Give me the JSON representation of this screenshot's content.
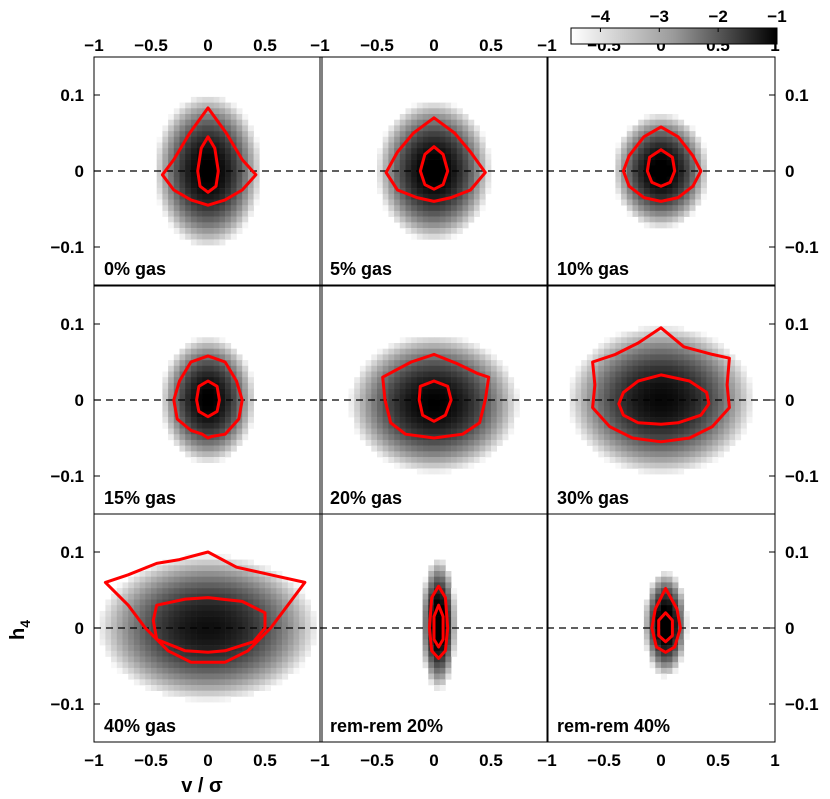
{
  "chart_data": {
    "type": "heatmap",
    "grid": {
      "rows": 3,
      "cols": 3
    },
    "xlim": [
      -1,
      1
    ],
    "ylim": [
      -0.15,
      0.15
    ],
    "xlabel": "v / σ",
    "ylabel": "h4",
    "x_ticks": [
      "-1",
      "-0.5",
      "0",
      "0.5"
    ],
    "x_ticks_last": "1",
    "y_ticks": [
      "0.1",
      "0",
      "-0.1"
    ],
    "y_tick_values": [
      0.1,
      0,
      -0.1
    ],
    "x_tick_values": [
      -1,
      -0.5,
      0,
      0.5,
      1
    ],
    "colorbar": {
      "ticks": [
        "-4",
        "-3",
        "-2",
        "-1"
      ],
      "range": [
        -4.5,
        -1
      ],
      "tick_values": [
        -4,
        -3,
        -2,
        -1
      ]
    },
    "panels": [
      {
        "label": "0% gas",
        "cx": 0.0,
        "cy": 0.0,
        "sx": 0.28,
        "sy": 0.06,
        "dark": -0.92,
        "outer": [
          [
            0,
            0.083
          ],
          [
            0.16,
            0.05
          ],
          [
            0.3,
            0.015
          ],
          [
            0.42,
            -0.005
          ],
          [
            0.3,
            -0.025
          ],
          [
            0.15,
            -0.038
          ],
          [
            0,
            -0.045
          ],
          [
            -0.15,
            -0.038
          ],
          [
            -0.3,
            -0.025
          ],
          [
            -0.4,
            -0.005
          ],
          [
            -0.3,
            0.015
          ],
          [
            -0.16,
            0.05
          ]
        ],
        "inner": [
          [
            0,
            0.045
          ],
          [
            0.06,
            0.03
          ],
          [
            0.09,
            0
          ],
          [
            0.07,
            -0.02
          ],
          [
            0,
            -0.028
          ],
          [
            -0.07,
            -0.02
          ],
          [
            -0.09,
            0
          ],
          [
            -0.06,
            0.03
          ]
        ]
      },
      {
        "label": "5% gas",
        "cx": 0.0,
        "cy": 0.0,
        "sx": 0.3,
        "sy": 0.055,
        "dark": -0.9,
        "outer": [
          [
            0,
            0.07
          ],
          [
            0.18,
            0.05
          ],
          [
            0.32,
            0.025
          ],
          [
            0.45,
            -0.002
          ],
          [
            0.32,
            -0.025
          ],
          [
            0.15,
            -0.035
          ],
          [
            0,
            -0.04
          ],
          [
            -0.15,
            -0.035
          ],
          [
            -0.32,
            -0.025
          ],
          [
            -0.42,
            -0.002
          ],
          [
            -0.32,
            0.025
          ],
          [
            -0.18,
            0.05
          ]
        ],
        "inner": [
          [
            0,
            0.032
          ],
          [
            0.08,
            0.022
          ],
          [
            0.12,
            0
          ],
          [
            0.08,
            -0.018
          ],
          [
            0,
            -0.024
          ],
          [
            -0.08,
            -0.018
          ],
          [
            -0.12,
            0
          ],
          [
            -0.08,
            0.022
          ]
        ]
      },
      {
        "label": "10% gas",
        "cx": 0.0,
        "cy": 0.0,
        "sx": 0.25,
        "sy": 0.045,
        "dark": -0.88,
        "outer": [
          [
            0,
            0.058
          ],
          [
            0.15,
            0.045
          ],
          [
            0.28,
            0.02
          ],
          [
            0.35,
            0
          ],
          [
            0.28,
            -0.02
          ],
          [
            0.15,
            -0.035
          ],
          [
            0,
            -0.04
          ],
          [
            -0.15,
            -0.035
          ],
          [
            -0.28,
            -0.02
          ],
          [
            -0.33,
            0
          ],
          [
            -0.28,
            0.02
          ],
          [
            -0.15,
            0.045
          ]
        ],
        "inner": [
          [
            0,
            0.028
          ],
          [
            0.1,
            0.018
          ],
          [
            0.12,
            0
          ],
          [
            0.08,
            -0.015
          ],
          [
            0,
            -0.02
          ],
          [
            -0.08,
            -0.015
          ],
          [
            -0.12,
            0
          ],
          [
            -0.1,
            0.018
          ]
        ]
      },
      {
        "label": "15% gas",
        "cx": 0.0,
        "cy": 0.0,
        "sx": 0.25,
        "sy": 0.05,
        "dark": -0.95,
        "outer": [
          [
            0,
            0.058
          ],
          [
            0.15,
            0.05
          ],
          [
            0.25,
            0.025
          ],
          [
            0.3,
            0
          ],
          [
            0.27,
            -0.025
          ],
          [
            0.15,
            -0.045
          ],
          [
            0.03,
            -0.048
          ],
          [
            0,
            -0.05
          ],
          [
            -0.05,
            -0.045
          ],
          [
            -0.15,
            -0.04
          ],
          [
            -0.27,
            -0.025
          ],
          [
            -0.3,
            0
          ],
          [
            -0.25,
            0.025
          ],
          [
            -0.15,
            0.05
          ]
        ],
        "inner": [
          [
            0,
            0.025
          ],
          [
            0.08,
            0.018
          ],
          [
            0.1,
            0
          ],
          [
            0.08,
            -0.015
          ],
          [
            0,
            -0.022
          ],
          [
            -0.08,
            -0.015
          ],
          [
            -0.1,
            0
          ],
          [
            -0.08,
            0.018
          ]
        ]
      },
      {
        "label": "20% gas",
        "cx": 0.0,
        "cy": -0.005,
        "sx": 0.45,
        "sy": 0.055,
        "dark": -1.0,
        "outer": [
          [
            0,
            0.06
          ],
          [
            0.2,
            0.048
          ],
          [
            0.38,
            0.035
          ],
          [
            0.48,
            0.03
          ],
          [
            0.45,
            0
          ],
          [
            0.4,
            -0.03
          ],
          [
            0.25,
            -0.045
          ],
          [
            0,
            -0.05
          ],
          [
            -0.25,
            -0.045
          ],
          [
            -0.38,
            -0.03
          ],
          [
            -0.43,
            0
          ],
          [
            -0.45,
            0.03
          ],
          [
            -0.35,
            0.038
          ],
          [
            -0.2,
            0.05
          ]
        ],
        "inner": [
          [
            0,
            0.025
          ],
          [
            0.12,
            0.018
          ],
          [
            0.15,
            0
          ],
          [
            0.1,
            -0.02
          ],
          [
            0,
            -0.028
          ],
          [
            -0.1,
            -0.02
          ],
          [
            -0.13,
            0
          ],
          [
            -0.12,
            0.018
          ]
        ]
      },
      {
        "label": "30% gas",
        "cx": 0.0,
        "cy": 0.0,
        "sx": 0.5,
        "sy": 0.06,
        "dark": -1.1,
        "outer": [
          [
            0,
            0.095
          ],
          [
            0.2,
            0.07
          ],
          [
            0.45,
            0.06
          ],
          [
            0.6,
            0.055
          ],
          [
            0.58,
            0.02
          ],
          [
            0.6,
            -0.01
          ],
          [
            0.45,
            -0.035
          ],
          [
            0.25,
            -0.05
          ],
          [
            0,
            -0.055
          ],
          [
            -0.25,
            -0.05
          ],
          [
            -0.45,
            -0.035
          ],
          [
            -0.6,
            -0.01
          ],
          [
            -0.58,
            0.02
          ],
          [
            -0.6,
            0.05
          ],
          [
            -0.4,
            0.06
          ],
          [
            -0.2,
            0.075
          ]
        ],
        "inner": [
          [
            0,
            0.033
          ],
          [
            0.25,
            0.025
          ],
          [
            0.4,
            0.01
          ],
          [
            0.42,
            -0.005
          ],
          [
            0.35,
            -0.02
          ],
          [
            0.15,
            -0.03
          ],
          [
            0,
            -0.032
          ],
          [
            -0.2,
            -0.03
          ],
          [
            -0.33,
            -0.02
          ],
          [
            -0.37,
            -0.005
          ],
          [
            -0.33,
            0.01
          ],
          [
            -0.2,
            0.025
          ]
        ]
      },
      {
        "label": "40% gas",
        "cx": 0.0,
        "cy": 0.0,
        "sx": 0.6,
        "sy": 0.06,
        "dark": -1.2,
        "outer": [
          [
            0,
            0.1
          ],
          [
            0.25,
            0.08
          ],
          [
            0.55,
            0.07
          ],
          [
            0.85,
            0.06
          ],
          [
            0.7,
            0.03
          ],
          [
            0.55,
            0
          ],
          [
            0.35,
            -0.03
          ],
          [
            0.15,
            -0.045
          ],
          [
            0,
            -0.045
          ],
          [
            -0.15,
            -0.045
          ],
          [
            -0.35,
            -0.03
          ],
          [
            -0.55,
            0
          ],
          [
            -0.7,
            0.03
          ],
          [
            -0.9,
            0.06
          ],
          [
            -0.7,
            0.07
          ],
          [
            -0.45,
            0.085
          ],
          [
            -0.25,
            0.09
          ]
        ],
        "inner": [
          [
            0,
            0.04
          ],
          [
            0.3,
            0.035
          ],
          [
            0.5,
            0.02
          ],
          [
            0.5,
            0
          ],
          [
            0.4,
            -0.018
          ],
          [
            0.15,
            -0.03
          ],
          [
            0,
            -0.032
          ],
          [
            -0.2,
            -0.03
          ],
          [
            -0.45,
            -0.015
          ],
          [
            -0.48,
            0.01
          ],
          [
            -0.45,
            0.03
          ],
          [
            -0.2,
            0.038
          ]
        ]
      },
      {
        "label": "rem-rem 20%",
        "cx": 0.04,
        "cy": 0.005,
        "sx": 0.09,
        "sy": 0.05,
        "dark": -0.6,
        "outer": [
          [
            0.04,
            0.055
          ],
          [
            0.1,
            0.04
          ],
          [
            0.12,
            0.0
          ],
          [
            0.1,
            -0.03
          ],
          [
            0.04,
            -0.04
          ],
          [
            -0.02,
            -0.03
          ],
          [
            -0.04,
            0
          ],
          [
            -0.02,
            0.04
          ]
        ],
        "inner": [
          [
            0.04,
            0.03
          ],
          [
            0.08,
            0.015
          ],
          [
            0.08,
            -0.015
          ],
          [
            0.04,
            -0.025
          ],
          [
            0.0,
            -0.015
          ],
          [
            0.0,
            0.015
          ]
        ]
      },
      {
        "label": "rem-rem 40%",
        "cx": 0.04,
        "cy": 0.005,
        "sx": 0.11,
        "sy": 0.04,
        "dark": -0.6,
        "outer": [
          [
            0.04,
            0.052
          ],
          [
            0.14,
            0.025
          ],
          [
            0.17,
            0
          ],
          [
            0.12,
            -0.025
          ],
          [
            0.04,
            -0.032
          ],
          [
            -0.04,
            -0.025
          ],
          [
            -0.08,
            0
          ],
          [
            -0.05,
            0.025
          ]
        ],
        "inner": [
          [
            0.04,
            0.02
          ],
          [
            0.1,
            0.01
          ],
          [
            0.1,
            -0.01
          ],
          [
            0.04,
            -0.018
          ],
          [
            -0.02,
            -0.01
          ],
          [
            -0.02,
            0.01
          ]
        ]
      }
    ]
  }
}
